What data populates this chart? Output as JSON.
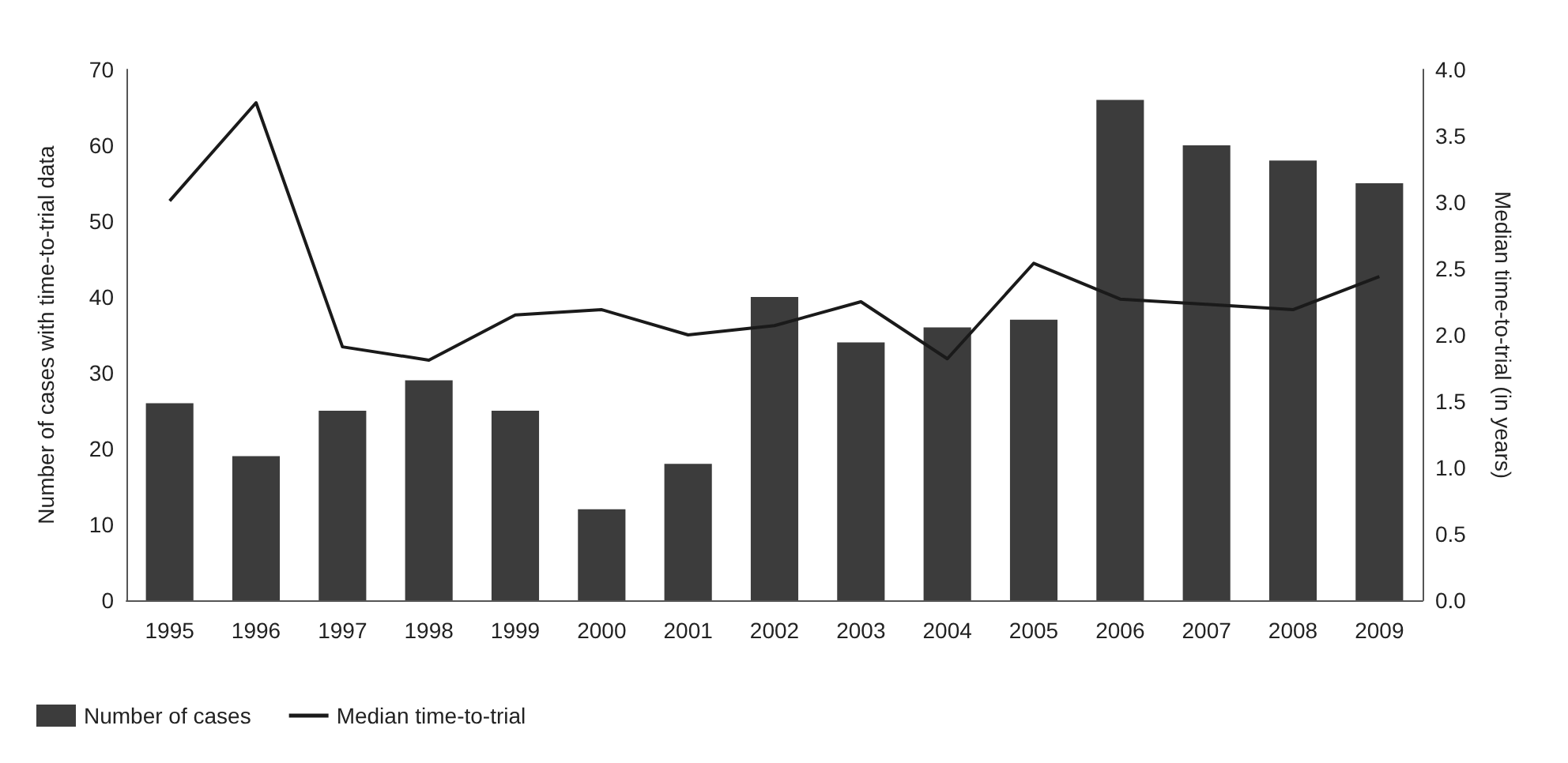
{
  "chart_data": {
    "type": "bar",
    "categories": [
      "1995",
      "1996",
      "1997",
      "1998",
      "1999",
      "2000",
      "2001",
      "2002",
      "2003",
      "2004",
      "2005",
      "2006",
      "2007",
      "2008",
      "2009"
    ],
    "series": [
      {
        "name": "Number of cases",
        "color": "#3c3c3c",
        "values": [
          26,
          19,
          25,
          29,
          25,
          12,
          18,
          40,
          34,
          36,
          37,
          66,
          60,
          58,
          55
        ]
      },
      {
        "name": "Median time-to-trial",
        "type": "line",
        "axis": "y2",
        "color": "#1a1a1a",
        "marker": "none",
        "values": [
          3.01,
          3.75,
          1.91,
          1.81,
          2.15,
          2.19,
          2.0,
          2.07,
          2.25,
          1.82,
          2.54,
          2.27,
          2.23,
          2.19,
          2.44
        ]
      }
    ],
    "ylabel": "Number of cases with time-to-trial data",
    "y2label": "Median time-to-trial (in years)",
    "ylim": [
      0,
      70
    ],
    "yticks": [
      0,
      10,
      20,
      30,
      40,
      50,
      60,
      70
    ],
    "y2lim": [
      0,
      4
    ],
    "y2ticks": [
      {
        "value": 0,
        "label": "0.0"
      },
      {
        "value": 0.5,
        "label": "0.5"
      },
      {
        "value": 1,
        "label": "1.0"
      },
      {
        "value": 1.5,
        "label": "1.5"
      },
      {
        "value": 2,
        "label": "2.0"
      },
      {
        "value": 2.5,
        "label": "2.5"
      },
      {
        "value": 3,
        "label": "3.0"
      },
      {
        "value": 3.5,
        "label": "3.5"
      },
      {
        "value": 4,
        "label": "4.0"
      }
    ],
    "grid": false,
    "legend": "bottom left"
  }
}
